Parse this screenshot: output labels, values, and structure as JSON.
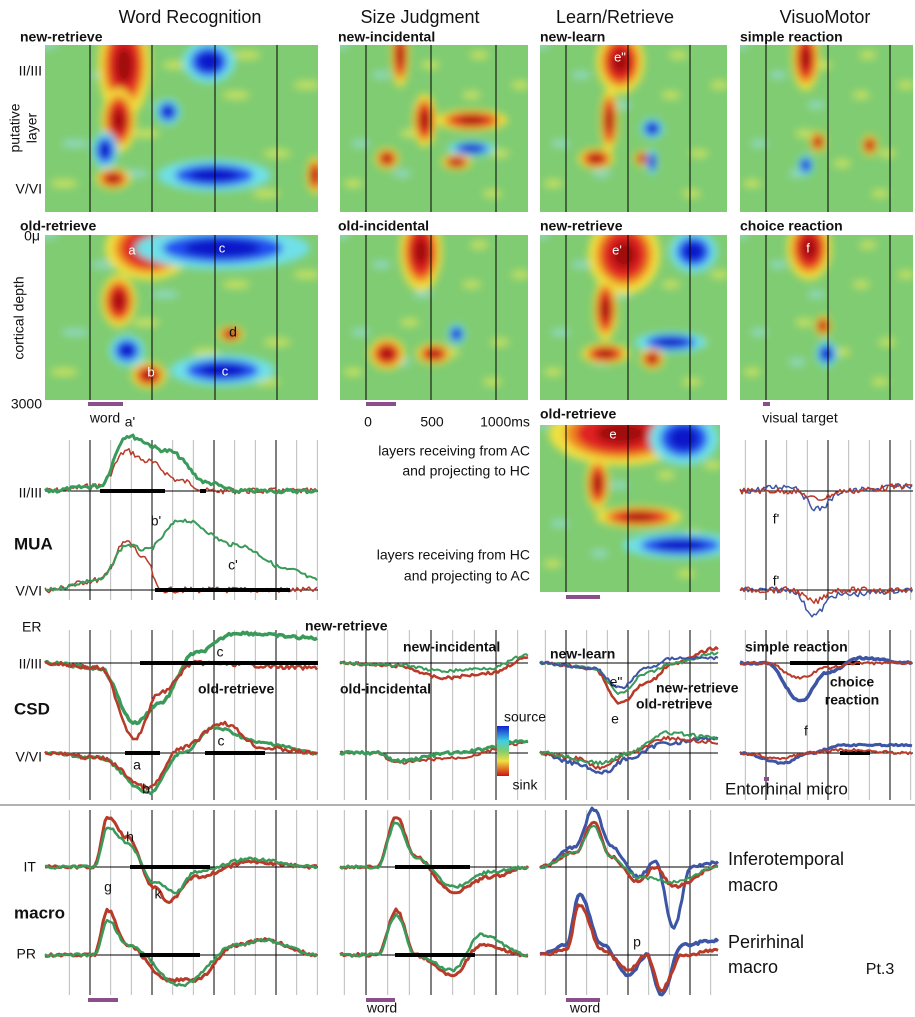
{
  "columns": [
    "Word Recognition",
    "Size Judgment",
    "Learn/Retrieve",
    "VisuoMotor"
  ],
  "heatmap_labels": {
    "row1": [
      "new-retrieve",
      "new-incidental",
      "new-learn",
      "simple reaction"
    ],
    "row2": [
      "old-retrieve",
      "old-incidental",
      "new-retrieve",
      "choice reaction"
    ],
    "row3": "old-retrieve"
  },
  "heatmap_letters": [
    "e\"",
    "a",
    "c",
    "b",
    "c",
    "d",
    "e'",
    "f",
    "e"
  ],
  "depth_axis": {
    "upper_layer": "II/III",
    "layer_title": [
      "putative",
      "layer"
    ],
    "lower_layer": "V/VI",
    "top": "0μ",
    "depth_title": "cortical depth",
    "bottom": "3000"
  },
  "time_axis": {
    "stimulus": "word",
    "ticks": [
      "0",
      "500",
      "1000ms"
    ],
    "visual": "visual target"
  },
  "layer_notes": [
    [
      "layers receiving from AC",
      "and projecting to HC"
    ],
    [
      "layers receiving from HC",
      "and projecting to AC"
    ]
  ],
  "mua": {
    "title": "MUA",
    "layers": [
      "II/III",
      "V/VI"
    ],
    "peaks": [
      "a'",
      "b'",
      "c'",
      "f'",
      "f'"
    ]
  },
  "csd": {
    "region": "ER",
    "title": "CSD",
    "layers": [
      "II/III",
      "V/VI"
    ],
    "word_labels": [
      "c",
      "new-retrieve",
      "old-retrieve",
      "a",
      "c",
      "b"
    ],
    "size_labels": [
      "new-incidental",
      "old-incidental"
    ],
    "learn_labels": [
      "new-learn",
      "e\"",
      "new-retrieve",
      "old-retrieve",
      "e"
    ],
    "visuomotor_labels": [
      "simple reaction",
      [
        "choice",
        "reaction"
      ],
      "f"
    ],
    "colorbar": [
      "source",
      "sink"
    ],
    "caption": "Entorhinal micro"
  },
  "macro": {
    "title": "macro",
    "areas": [
      "IT",
      "PR"
    ],
    "peaks": [
      "h",
      "g",
      "k",
      "p"
    ],
    "stimulus": [
      "word",
      "word"
    ],
    "captions": [
      [
        "Inferotemporal",
        "macro"
      ],
      [
        "Perirhinal",
        "macro"
      ]
    ],
    "part": "Pt.3"
  }
}
